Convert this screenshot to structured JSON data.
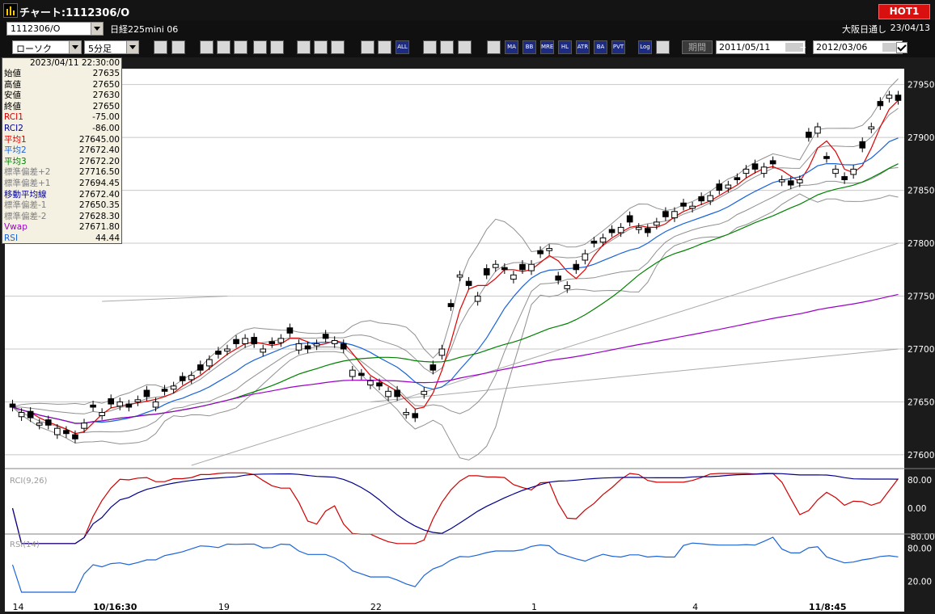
{
  "window": {
    "title": "チャート:1112306/O",
    "hot_label": "HOT1"
  },
  "symbol_bar": {
    "code": "1112306/O",
    "name": "日経225mini 06",
    "exchange": "大阪日通し",
    "date": "23/04/13"
  },
  "toolbar": {
    "chart_style": "ローソク",
    "timeframe": "5分足",
    "buttons": [
      {
        "name": "zoom-icon",
        "label": ""
      },
      {
        "name": "cursor-icon",
        "label": ""
      },
      {
        "name": "download-icon",
        "label": ""
      },
      {
        "name": "search-icon",
        "label": ""
      },
      {
        "name": "chart-icon",
        "label": ""
      },
      {
        "name": "flag-icon",
        "label": ""
      },
      {
        "name": "alert-icon",
        "label": ""
      },
      {
        "name": "pencil-icon",
        "label": ""
      },
      {
        "name": "pointer-icon",
        "label": ""
      },
      {
        "name": "undo-icon",
        "label": ""
      },
      {
        "name": "zoom-in-icon",
        "label": ""
      },
      {
        "name": "zoom-out-icon",
        "label": ""
      },
      {
        "name": "all-icon",
        "label": "ALL"
      },
      {
        "name": "settings-icon",
        "label": ""
      },
      {
        "name": "wrench-icon",
        "label": ""
      },
      {
        "name": "color-icon",
        "label": ""
      },
      {
        "name": "grid-icon",
        "label": ""
      },
      {
        "name": "ma-button",
        "label": "MA"
      },
      {
        "name": "bb-button",
        "label": "BB"
      },
      {
        "name": "mre-button",
        "label": "MRE"
      },
      {
        "name": "hl-button",
        "label": "HL"
      },
      {
        "name": "atr-button",
        "label": "ATR"
      },
      {
        "name": "ba-button",
        "label": "BA"
      },
      {
        "name": "pvt-button",
        "label": "PVT"
      },
      {
        "name": "log-button",
        "label": "Log"
      },
      {
        "name": "export-icon",
        "label": ""
      }
    ],
    "period_label": "期間",
    "date_from": "2011/05/11",
    "date_sep": "~",
    "date_to": "2012/03/06"
  },
  "infobox": {
    "timestamp": "2023/04/11  22:30:00",
    "rows": [
      {
        "label": "始値",
        "value": "27635",
        "color": "#000000"
      },
      {
        "label": "高値",
        "value": "27650",
        "color": "#000000"
      },
      {
        "label": "安値",
        "value": "27630",
        "color": "#000000"
      },
      {
        "label": "終値",
        "value": "27650",
        "color": "#000000"
      },
      {
        "label": "RCI1",
        "value": "-75.00",
        "color": "#d00000"
      },
      {
        "label": "RCI2",
        "value": "-86.00",
        "color": "#00008c"
      },
      {
        "label": "平均1",
        "value": "27645.00",
        "color": "#e00000"
      },
      {
        "label": "平均2",
        "value": "27672.40",
        "color": "#1a64d8"
      },
      {
        "label": "平均3",
        "value": "27672.20",
        "color": "#008000"
      },
      {
        "label": "標準偏差+2",
        "value": "27716.50",
        "color": "#808080"
      },
      {
        "label": "標準偏差+1",
        "value": "27694.45",
        "color": "#808080"
      },
      {
        "label": "移動平均線",
        "value": "27672.40",
        "color": "#00008c"
      },
      {
        "label": "標準偏差-1",
        "value": "27650.35",
        "color": "#808080"
      },
      {
        "label": "標準偏差-2",
        "value": "27628.30",
        "color": "#808080"
      },
      {
        "label": "Vwap",
        "value": "27671.80",
        "color": "#9c00c8"
      },
      {
        "label": "RSI",
        "value": "44.44",
        "color": "#1a64d8"
      }
    ]
  },
  "rci_pane": {
    "label": "RCI(9,26)",
    "ticks": [
      "80.00",
      "0.00",
      "-80.00"
    ]
  },
  "rsi_pane": {
    "label": "RSI(14)",
    "ticks": [
      "80.00",
      "20.00"
    ]
  },
  "chart_data": {
    "type": "line",
    "price_ticks": [
      "27950",
      "27900",
      "27850",
      "27800",
      "27750",
      "27700",
      "27650",
      "27600"
    ],
    "x_labels": [
      {
        "text": "14",
        "bold": false
      },
      {
        "text": "10/16:30",
        "bold": true
      },
      {
        "text": "19",
        "bold": false
      },
      {
        "text": "22",
        "bold": false
      },
      {
        "text": "1",
        "bold": false
      },
      {
        "text": "4",
        "bold": false
      },
      {
        "text": "11/8:45",
        "bold": true
      }
    ],
    "close": [
      27645,
      27640,
      27635,
      27630,
      27628,
      27625,
      27620,
      27615,
      27630,
      27645,
      27640,
      27648,
      27650,
      27645,
      27652,
      27655,
      27650,
      27660,
      27665,
      27670,
      27675,
      27680,
      27690,
      27695,
      27700,
      27705,
      27710,
      27705,
      27700,
      27705,
      27710,
      27715,
      27705,
      27700,
      27705,
      27710,
      27708,
      27700,
      27680,
      27675,
      27670,
      27665,
      27660,
      27655,
      27640,
      27635,
      27660,
      27680,
      27700,
      27740,
      27770,
      27760,
      27750,
      27770,
      27780,
      27775,
      27770,
      27775,
      27780,
      27790,
      27795,
      27765,
      27760,
      27775,
      27790,
      27800,
      27805,
      27810,
      27815,
      27820,
      27815,
      27810,
      27820,
      27825,
      27830,
      27835,
      27835,
      27840,
      27845,
      27850,
      27855,
      27860,
      27870,
      27870,
      27872,
      27875,
      27860,
      27855,
      27860,
      27900,
      27910,
      27880,
      27870,
      27860,
      27870,
      27890,
      27910,
      27930,
      27940,
      27935
    ],
    "open_offsets": [
      3,
      -4,
      6,
      -2,
      5,
      -6,
      3,
      4,
      -5,
      2,
      -3,
      5,
      -4,
      3,
      -2,
      6,
      -5,
      2,
      -3,
      4,
      -4,
      5,
      -6,
      3,
      -2,
      4,
      -5,
      6,
      -3,
      2,
      -4,
      5,
      -6,
      3,
      -2,
      4,
      -3,
      5,
      -6,
      2,
      -4,
      3,
      -5,
      6,
      -2,
      4,
      -3,
      5,
      -6,
      3,
      -2,
      4,
      -5,
      6,
      -3,
      2,
      -4,
      5,
      -6,
      3,
      -2,
      4,
      -3,
      5,
      -6,
      2,
      -4,
      3,
      -5,
      6,
      -2,
      4,
      -3,
      5,
      -6,
      3,
      -2,
      4,
      -5,
      6,
      -3,
      2,
      -4,
      5,
      -6,
      3,
      -2,
      4,
      -3,
      5,
      -6,
      2,
      -4,
      3,
      -5,
      6,
      -2,
      4,
      -3,
      5
    ],
    "series": [
      {
        "name": "平均1",
        "color": "#e00000"
      },
      {
        "name": "平均2",
        "color": "#1a64d8"
      },
      {
        "name": "平均3",
        "color": "#008000"
      },
      {
        "name": "Vwap",
        "color": "#9c00c8"
      }
    ],
    "ylim": [
      27590,
      27965
    ],
    "trendlines": [
      {
        "from": [
          20,
          27590
        ],
        "to": [
          100,
          27800
        ],
        "color": "#aaaaaa"
      },
      {
        "from": [
          10,
          27745
        ],
        "to": [
          25,
          27750
        ],
        "color": "#aaaaaa"
      },
      {
        "from": [
          40,
          27650
        ],
        "to": [
          100,
          27700
        ],
        "color": "#aaaaaa"
      }
    ]
  },
  "colors": {
    "up": "#ffffff",
    "down": "#000000",
    "grid": "#c8c8c8",
    "rci_short": "#d00000",
    "rci_long": "#00008c",
    "rsi": "#1a64d8"
  }
}
